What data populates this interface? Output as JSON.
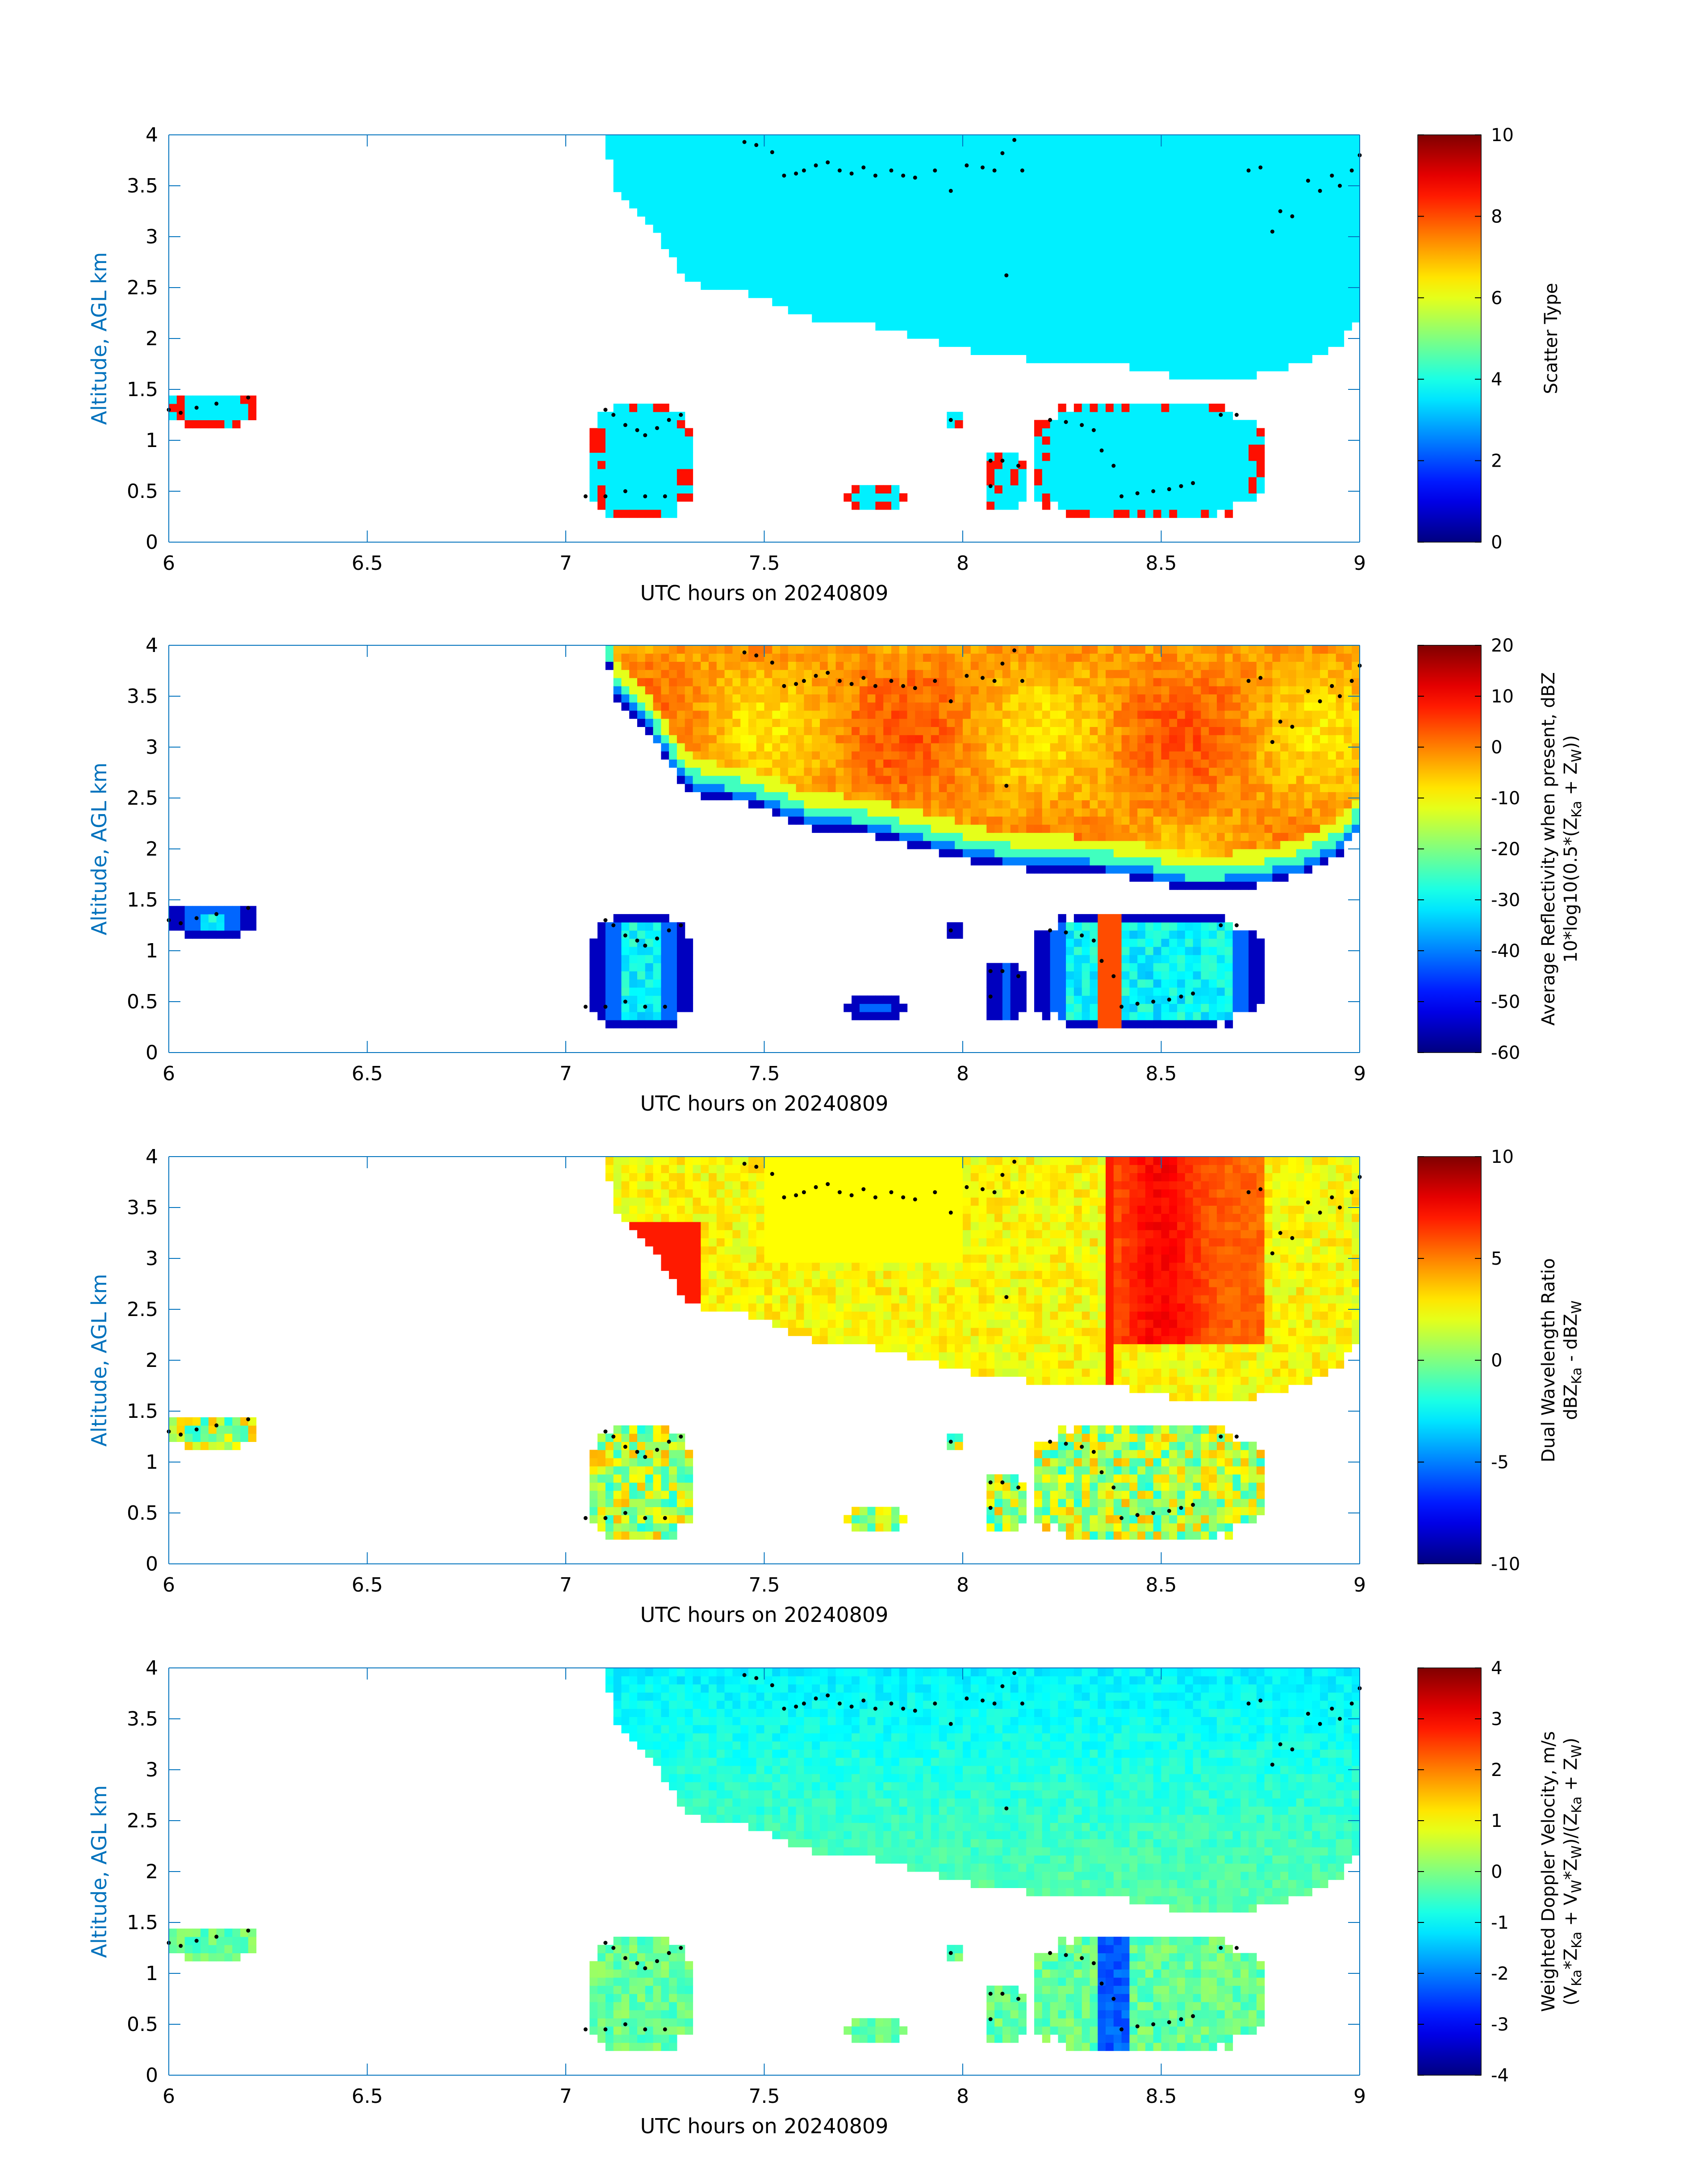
{
  "figure": {
    "background": "#ffffff",
    "axis_color": "#0072bd",
    "tick_label_color": "#000000",
    "ylabel_color": "#0072bd",
    "marker_color": "#000000"
  },
  "chart_data": [
    {
      "type": "heatmap",
      "title": "",
      "xlabel": "UTC hours on 20240809",
      "ylabel": "Altitude, AGL km",
      "xlim": [
        6,
        9
      ],
      "ylim": [
        0,
        4
      ],
      "xticks": [
        "6",
        "6.5",
        "7",
        "7.5",
        "8",
        "8.5",
        "9"
      ],
      "yticks": [
        "0",
        "0.5",
        "1",
        "1.5",
        "2",
        "2.5",
        "3",
        "3.5",
        "4"
      ],
      "colorbar": {
        "label": [
          "Scatter Type"
        ],
        "range": [
          0,
          10
        ],
        "ticks": [
          "0",
          "2",
          "4",
          "6",
          "8",
          "10"
        ]
      },
      "colormap": "jet",
      "field": "scatter_type",
      "notes_visible": "dominant value ~3.5 (cyan) in cloud regions; ~8.5 (red-orange) patches at low-level edges"
    },
    {
      "type": "heatmap",
      "title": "",
      "xlabel": "UTC hours on 20240809",
      "ylabel": "Altitude, AGL km",
      "xlim": [
        6,
        9
      ],
      "ylim": [
        0,
        4
      ],
      "xticks": [
        "6",
        "6.5",
        "7",
        "7.5",
        "8",
        "8.5",
        "9"
      ],
      "yticks": [
        "0",
        "0.5",
        "1",
        "1.5",
        "2",
        "2.5",
        "3",
        "3.5",
        "4"
      ],
      "colorbar": {
        "label": [
          "Average Reflectivity when present, dBZ",
          "10*log10(0.5*(Z",
          "Ka",
          " + Z",
          "W",
          "))"
        ],
        "range": [
          -60,
          20
        ],
        "ticks": [
          "-60",
          "-50",
          "-40",
          "-30",
          "-20",
          "-10",
          "0",
          "10",
          "20"
        ]
      },
      "colormap": "jet",
      "field": "reflectivity",
      "notes_visible": "upper cloud core ~0 to 5 dBZ, edges fall to about -55 dBZ; narrow column ~5 dBZ near 8.37 h"
    },
    {
      "type": "heatmap",
      "title": "",
      "xlabel": "UTC hours on 20240809",
      "ylabel": "Altitude, AGL km",
      "xlim": [
        6,
        9
      ],
      "ylim": [
        0,
        4
      ],
      "xticks": [
        "6",
        "6.5",
        "7",
        "7.5",
        "8",
        "8.5",
        "9"
      ],
      "yticks": [
        "0",
        "0.5",
        "1",
        "1.5",
        "2",
        "2.5",
        "3",
        "3.5",
        "4"
      ],
      "colorbar": {
        "label": [
          "Dual Wavelength Ratio",
          "dBZ",
          "Ka",
          " - dBZ",
          "W"
        ],
        "range": [
          -10,
          10
        ],
        "ticks": [
          "-10",
          "-5",
          "0",
          "5",
          "10"
        ]
      },
      "colormap": "jet",
      "field": "dual_wavelength_ratio",
      "notes_visible": "mostly 2 to 4 dB; maxima ~7 dB near 7.25 h at 2.7 km and ~7 dB near 8.5 h at 3 km"
    },
    {
      "type": "heatmap",
      "title": "",
      "xlabel": "UTC hours on 20240809",
      "ylabel": "Altitude, AGL km",
      "xlim": [
        6,
        9
      ],
      "ylim": [
        0,
        4
      ],
      "xticks": [
        "6",
        "6.5",
        "7",
        "7.5",
        "8",
        "8.5",
        "9"
      ],
      "yticks": [
        "0",
        "0.5",
        "1",
        "1.5",
        "2",
        "2.5",
        "3",
        "3.5",
        "4"
      ],
      "colorbar": {
        "label": [
          "Weighted Doppler Velocity, m/s",
          "(V",
          "Ka",
          "*Z",
          "Ka",
          " + V",
          "W",
          "*Z",
          "W",
          ")/(Z",
          "Ka",
          " + Z",
          "W",
          ")"
        ],
        "range": [
          -4,
          4
        ],
        "ticks": [
          "-4",
          "-3",
          "-2",
          "-1",
          "0",
          "1",
          "2",
          "3",
          "4"
        ]
      },
      "colormap": "jet",
      "field": "doppler_velocity",
      "notes_visible": "mostly -0.5 to -1.3 m/s; column near 8.37 h around -2.2 m/s"
    }
  ],
  "regions": {
    "upper_cloud_top_km": 4.0,
    "upper_cloud_base": [
      [
        7.1,
        4.0
      ],
      [
        7.12,
        3.5
      ],
      [
        7.2,
        3.2
      ],
      [
        7.26,
        2.85
      ],
      [
        7.3,
        2.6
      ],
      [
        7.35,
        2.5
      ],
      [
        7.45,
        2.45
      ],
      [
        7.55,
        2.3
      ],
      [
        7.62,
        2.2
      ],
      [
        7.75,
        2.15
      ],
      [
        7.85,
        2.05
      ],
      [
        7.95,
        1.95
      ],
      [
        8.05,
        1.85
      ],
      [
        8.15,
        1.8
      ],
      [
        8.25,
        1.78
      ],
      [
        8.35,
        1.75
      ],
      [
        8.45,
        1.7
      ],
      [
        8.55,
        1.6
      ],
      [
        8.65,
        1.6
      ],
      [
        8.75,
        1.65
      ],
      [
        8.85,
        1.75
      ],
      [
        8.95,
        1.95
      ],
      [
        9.0,
        2.2
      ]
    ],
    "low_cells": [
      {
        "t0": 6.0,
        "t1": 6.22,
        "z0": 1.15,
        "z1": 1.48
      },
      {
        "t0": 7.05,
        "t1": 7.32,
        "z0": 0.25,
        "z1": 1.35
      },
      {
        "t0": 7.7,
        "t1": 7.85,
        "z0": 0.35,
        "z1": 0.55
      },
      {
        "t0": 7.96,
        "t1": 8.0,
        "z0": 1.15,
        "z1": 1.25
      },
      {
        "t0": 8.05,
        "t1": 8.15,
        "z0": 0.3,
        "z1": 0.9
      },
      {
        "t0": 8.17,
        "t1": 8.75,
        "z0": 0.25,
        "z1": 1.35
      }
    ]
  },
  "markers": [
    [
      6.0,
      1.3
    ],
    [
      6.03,
      1.27
    ],
    [
      6.07,
      1.32
    ],
    [
      6.12,
      1.36
    ],
    [
      6.2,
      1.42
    ],
    [
      7.1,
      1.3
    ],
    [
      7.12,
      1.25
    ],
    [
      7.15,
      1.15
    ],
    [
      7.18,
      1.1
    ],
    [
      7.2,
      1.05
    ],
    [
      7.23,
      1.12
    ],
    [
      7.26,
      1.2
    ],
    [
      7.29,
      1.25
    ],
    [
      7.05,
      0.45
    ],
    [
      7.1,
      0.45
    ],
    [
      7.15,
      0.5
    ],
    [
      7.2,
      0.45
    ],
    [
      7.25,
      0.45
    ],
    [
      7.45,
      3.93
    ],
    [
      7.48,
      3.9
    ],
    [
      7.52,
      3.83
    ],
    [
      7.55,
      3.6
    ],
    [
      7.58,
      3.62
    ],
    [
      7.6,
      3.65
    ],
    [
      7.63,
      3.7
    ],
    [
      7.66,
      3.73
    ],
    [
      7.69,
      3.65
    ],
    [
      7.72,
      3.62
    ],
    [
      7.75,
      3.68
    ],
    [
      7.78,
      3.6
    ],
    [
      7.82,
      3.65
    ],
    [
      7.85,
      3.6
    ],
    [
      7.88,
      3.58
    ],
    [
      7.93,
      3.65
    ],
    [
      7.97,
      3.45
    ],
    [
      8.01,
      3.7
    ],
    [
      8.05,
      3.68
    ],
    [
      8.08,
      3.65
    ],
    [
      8.1,
      3.82
    ],
    [
      8.13,
      3.95
    ],
    [
      8.15,
      3.65
    ],
    [
      8.11,
      2.62
    ],
    [
      7.97,
      1.2
    ],
    [
      8.07,
      0.8
    ],
    [
      8.1,
      0.8
    ],
    [
      8.14,
      0.75
    ],
    [
      8.07,
      0.55
    ],
    [
      8.22,
      1.2
    ],
    [
      8.26,
      1.18
    ],
    [
      8.3,
      1.15
    ],
    [
      8.33,
      1.1
    ],
    [
      8.35,
      0.9
    ],
    [
      8.38,
      0.75
    ],
    [
      8.4,
      0.45
    ],
    [
      8.44,
      0.48
    ],
    [
      8.48,
      0.5
    ],
    [
      8.52,
      0.52
    ],
    [
      8.55,
      0.55
    ],
    [
      8.58,
      0.58
    ],
    [
      8.65,
      1.25
    ],
    [
      8.69,
      1.25
    ],
    [
      8.72,
      3.65
    ],
    [
      8.75,
      3.68
    ],
    [
      8.78,
      3.05
    ],
    [
      8.8,
      3.25
    ],
    [
      8.83,
      3.2
    ],
    [
      8.87,
      3.55
    ],
    [
      8.9,
      3.45
    ],
    [
      8.93,
      3.6
    ],
    [
      8.95,
      3.5
    ],
    [
      8.98,
      3.65
    ],
    [
      9.0,
      3.8
    ]
  ]
}
